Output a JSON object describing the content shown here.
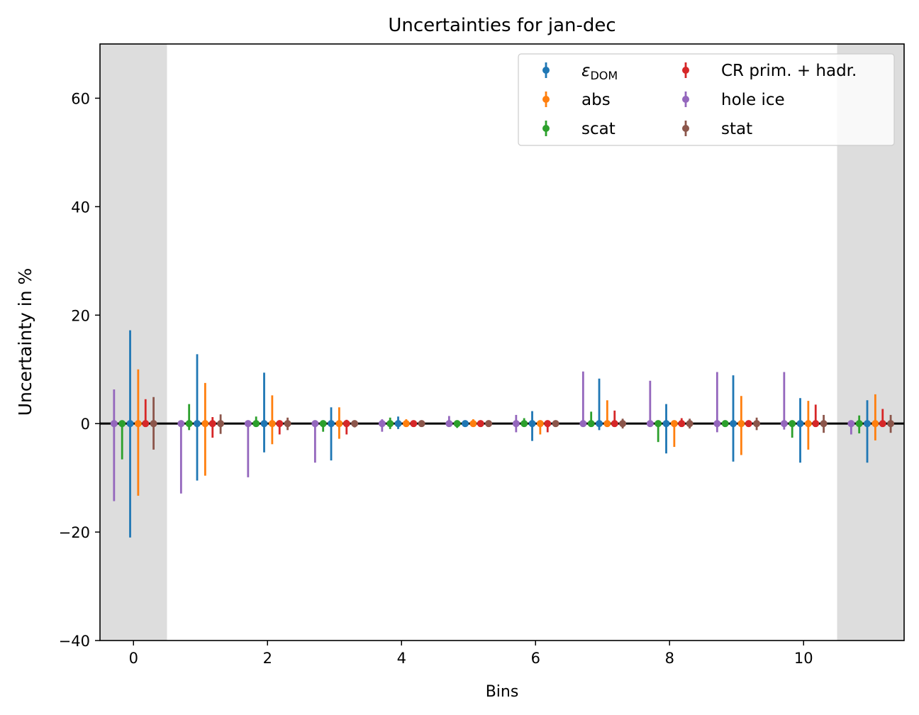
{
  "chart_data": {
    "type": "errorbar",
    "title": "Uncertainties for jan-dec",
    "xlabel": "Bins",
    "ylabel": "Uncertainty in %",
    "xlim": [
      -0.5,
      11.5
    ],
    "ylim": [
      -40,
      70
    ],
    "xticks": [
      "0",
      "2",
      "4",
      "6",
      "8",
      "10"
    ],
    "yticks": [
      "−40",
      "−20",
      "0",
      "20",
      "40",
      "60"
    ],
    "shaded_bins": [
      0,
      11
    ],
    "legend_location": "upper right",
    "legend_columns": 2,
    "series": [
      {
        "name": "ε_DOM",
        "name_main": "ε",
        "name_sub": "DOM",
        "color": "#1f77b4",
        "offset": -0.05,
        "up": [
          17.2,
          12.8,
          9.4,
          3.0,
          1.3,
          0.3,
          2.3,
          8.3,
          3.6,
          8.9,
          4.7,
          4.3
        ],
        "down": [
          -21.0,
          -10.5,
          -5.3,
          -6.8,
          -1.0,
          -0.6,
          -3.2,
          -1.2,
          -5.5,
          -7.0,
          -7.2,
          -7.2
        ]
      },
      {
        "name": "abs",
        "color": "#ff7f0e",
        "offset": 0.07,
        "up": [
          10.0,
          7.5,
          5.2,
          3.0,
          0.8,
          0.8,
          0.3,
          4.3,
          0.3,
          5.1,
          4.2,
          5.4
        ],
        "down": [
          -13.3,
          -9.6,
          -3.8,
          -2.8,
          -0.3,
          -0.3,
          -2.0,
          -0.3,
          -4.3,
          -5.8,
          -4.8,
          -3.1
        ]
      },
      {
        "name": "scat",
        "color": "#2ca02c",
        "offset": -0.17,
        "up": [
          0.4,
          3.6,
          1.3,
          0.3,
          1.1,
          0.3,
          1.0,
          2.2,
          0.4,
          0.3,
          0.3,
          1.5
        ],
        "down": [
          -6.6,
          -1.2,
          -0.5,
          -1.5,
          -1.0,
          -0.8,
          -0.5,
          -0.3,
          -3.4,
          -0.5,
          -2.6,
          -1.8
        ]
      },
      {
        "name": "CR prim. + hadr.",
        "color": "#d62728",
        "offset": 0.18,
        "up": [
          4.5,
          1.2,
          0.3,
          0.7,
          0.2,
          0.2,
          0.5,
          2.4,
          1.0,
          0.5,
          3.5,
          2.7
        ],
        "down": [
          -0.4,
          -2.6,
          -2.0,
          -2.0,
          -0.2,
          -0.2,
          -1.6,
          -0.4,
          -0.5,
          -0.4,
          -0.4,
          -0.3
        ]
      },
      {
        "name": "hole ice",
        "color": "#9467bd",
        "offset": -0.29,
        "up": [
          6.3,
          0.2,
          0.2,
          0.2,
          0.8,
          1.4,
          1.6,
          9.6,
          7.9,
          9.5,
          9.5,
          0.2
        ],
        "down": [
          -14.3,
          -12.9,
          -9.9,
          -7.2,
          -1.5,
          -0.4,
          -1.6,
          -0.2,
          -0.2,
          -1.6,
          -1.1,
          -2.0
        ]
      },
      {
        "name": "stat",
        "color": "#8c564b",
        "offset": 0.3,
        "up": [
          4.9,
          1.7,
          1.1,
          0.6,
          0.4,
          0.4,
          0.6,
          0.9,
          0.9,
          1.1,
          1.6,
          1.6
        ],
        "down": [
          -4.8,
          -1.9,
          -1.2,
          -0.7,
          -0.5,
          -0.4,
          -0.6,
          -0.9,
          -0.9,
          -1.2,
          -1.7,
          -1.7
        ]
      }
    ]
  }
}
